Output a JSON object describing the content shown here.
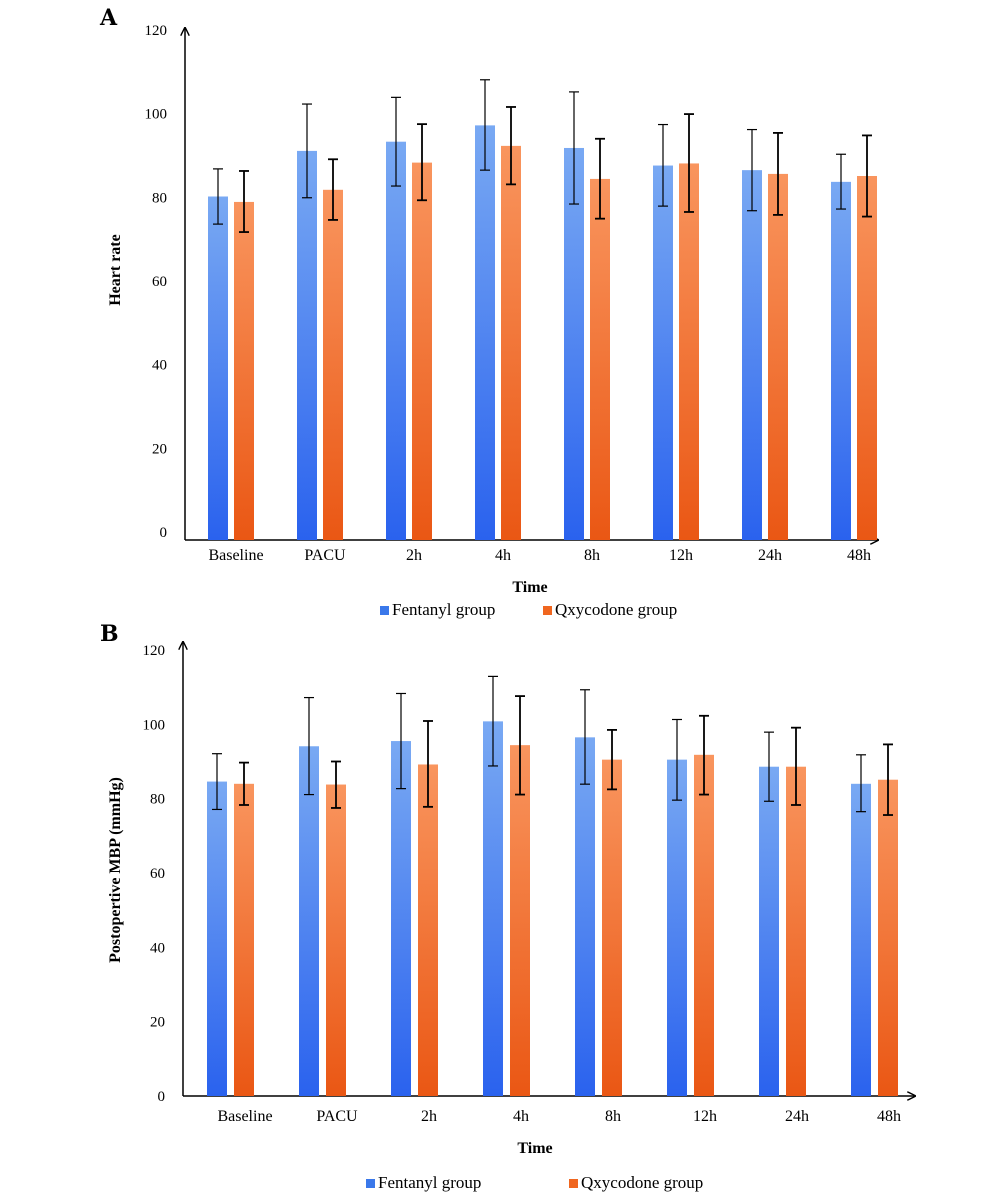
{
  "chart_data": [
    {
      "panel_label": "A",
      "type": "bar",
      "xlabel": "Time",
      "ylabel": "Heart rate",
      "ylim": [
        0,
        120
      ],
      "yticks": [
        0,
        20,
        40,
        60,
        80,
        100,
        120
      ],
      "categories": [
        "Baseline",
        "PACU",
        "2h",
        "4h",
        "8h",
        "12h",
        "24h",
        "48h"
      ],
      "legend_position": "bottom",
      "grid": false,
      "series": [
        {
          "name": "Fentanyl group",
          "color": "#3a78ea",
          "values": [
            80.2,
            91.1,
            93.3,
            97.2,
            91.8,
            87.6,
            86.5,
            83.7
          ],
          "error_low": [
            73.6,
            79.9,
            82.7,
            86.5,
            78.4,
            77.9,
            76.8,
            77.2
          ],
          "error_high": [
            86.8,
            102.3,
            103.9,
            108.1,
            105.2,
            97.4,
            96.2,
            90.3
          ]
        },
        {
          "name": "Qxycodone group",
          "color": "#f0661f",
          "values": [
            78.9,
            81.8,
            88.3,
            92.3,
            84.4,
            88.1,
            85.6,
            85.1
          ],
          "error_low": [
            71.7,
            74.6,
            79.3,
            83.1,
            74.9,
            76.5,
            75.8,
            75.4
          ],
          "error_high": [
            86.3,
            89.1,
            97.5,
            101.6,
            94.0,
            99.9,
            95.4,
            94.8
          ]
        }
      ]
    },
    {
      "panel_label": "B",
      "type": "bar",
      "xlabel": "Time",
      "ylabel": "Postopertive MBP (mmHg)",
      "ylim": [
        0,
        120
      ],
      "yticks": [
        0,
        20,
        40,
        60,
        80,
        100,
        120
      ],
      "categories": [
        "Baseline",
        "PACU",
        "2h",
        "4h",
        "8h",
        "12h",
        "24h",
        "48h"
      ],
      "legend_position": "bottom",
      "grid": false,
      "series": [
        {
          "name": "Fentanyl group",
          "color": "#3a78ea",
          "values": [
            84.6,
            94.1,
            95.5,
            100.8,
            96.5,
            90.5,
            88.6,
            84.0
          ],
          "error_low": [
            77.1,
            81.1,
            82.7,
            88.8,
            83.9,
            79.6,
            79.3,
            76.5
          ],
          "error_high": [
            92.1,
            107.2,
            108.3,
            112.9,
            109.3,
            101.3,
            97.9,
            91.8
          ]
        },
        {
          "name": "Qxycodone group",
          "color": "#f0661f",
          "values": [
            84.0,
            83.8,
            89.2,
            94.4,
            90.5,
            91.8,
            88.6,
            85.1
          ],
          "error_low": [
            78.3,
            77.5,
            77.8,
            81.1,
            82.5,
            81.1,
            78.3,
            75.6
          ],
          "error_high": [
            89.7,
            90.0,
            100.9,
            107.6,
            98.5,
            102.3,
            99.1,
            94.6
          ]
        }
      ]
    }
  ]
}
